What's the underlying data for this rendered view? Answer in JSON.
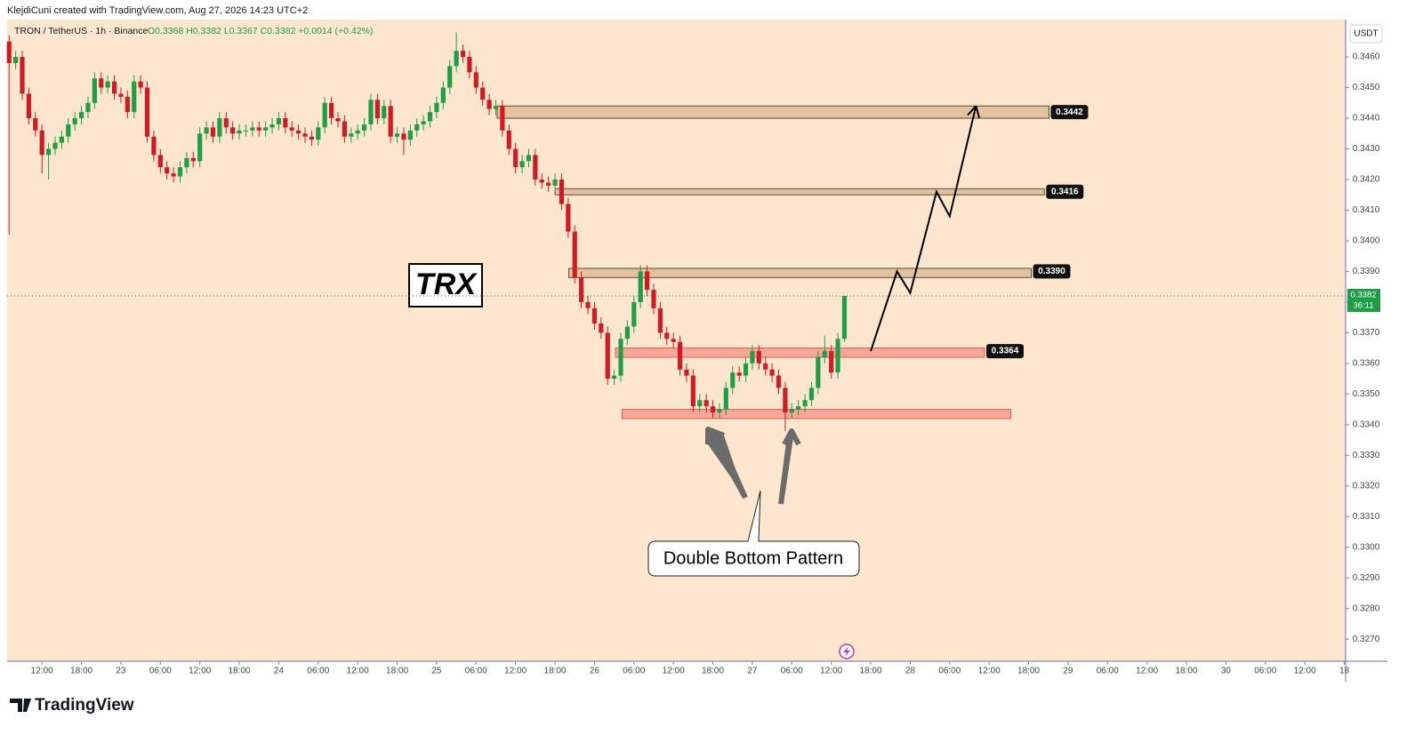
{
  "header": {
    "author_line": "KlejdiCuni created with TradingView.com, Aug 27, 2026 14:23 UTC+2",
    "symbol": "TRON / TetherUS · 1h · Binance",
    "ohlc": "O0.3368 H0.3382 L0.3367 C0.3382 +0.0014 (+0.42%)"
  },
  "chart_data": {
    "type": "candlestick",
    "title": "TRX",
    "annotation": "Double Bottom Pattern",
    "currency": "USDT",
    "x": [
      7,
      8,
      9,
      10,
      11,
      12,
      13,
      14,
      15,
      16,
      17,
      18,
      19,
      20,
      21,
      22,
      23,
      24,
      25,
      26,
      27,
      28,
      29,
      30,
      31,
      32,
      33,
      34,
      35,
      36,
      37,
      38,
      39,
      40,
      41,
      42,
      43,
      44,
      45,
      46,
      47,
      48,
      49,
      50,
      51,
      52,
      53,
      54,
      55,
      56,
      57,
      58,
      59,
      60,
      61,
      62,
      63,
      64,
      65,
      66,
      67,
      68,
      69,
      70,
      71,
      72,
      73,
      74,
      75,
      76,
      77,
      78,
      79,
      80,
      81,
      82,
      83,
      84,
      85,
      86,
      87,
      88,
      89,
      90,
      91,
      92,
      93,
      94,
      95,
      96,
      97,
      98,
      99,
      100,
      101,
      102,
      103,
      104,
      105,
      106,
      107,
      108,
      109,
      110,
      111,
      112,
      113,
      114,
      115,
      116,
      117,
      118,
      119,
      120,
      121,
      122,
      123,
      124,
      125,
      126,
      127,
      128,
      129,
      130,
      131,
      132,
      133,
      134
    ],
    "open": [
      0.3465,
      0.3458,
      0.346,
      0.3448,
      0.344,
      0.3436,
      0.3428,
      0.343,
      0.3432,
      0.3434,
      0.3438,
      0.344,
      0.3442,
      0.3445,
      0.3453,
      0.345,
      0.3452,
      0.3448,
      0.3447,
      0.3442,
      0.3452,
      0.345,
      0.3434,
      0.3428,
      0.3424,
      0.3422,
      0.3421,
      0.3424,
      0.3427,
      0.3426,
      0.3435,
      0.3437,
      0.3434,
      0.344,
      0.3437,
      0.3435,
      0.3436,
      0.3436,
      0.3437,
      0.3436,
      0.3437,
      0.3438,
      0.344,
      0.3437,
      0.3436,
      0.3435,
      0.3434,
      0.3433,
      0.3437,
      0.3445,
      0.344,
      0.3439,
      0.3434,
      0.3435,
      0.3436,
      0.3438,
      0.3446,
      0.344,
      0.3444,
      0.3434,
      0.3435,
      0.3433,
      0.3436,
      0.3438,
      0.3439,
      0.3442,
      0.3445,
      0.345,
      0.3457,
      0.3462,
      0.346,
      0.3455,
      0.345,
      0.3446,
      0.3443,
      0.3444,
      0.3436,
      0.343,
      0.3424,
      0.3426,
      0.3428,
      0.342,
      0.3419,
      0.3418,
      0.342,
      0.3412,
      0.3403,
      0.3388,
      0.338,
      0.3378,
      0.3373,
      0.337,
      0.3355,
      0.3356,
      0.3368,
      0.3372,
      0.338,
      0.339,
      0.3384,
      0.3378,
      0.337,
      0.3368,
      0.3367,
      0.3358,
      0.3356,
      0.3346,
      0.3348,
      0.3346,
      0.3344,
      0.3345,
      0.3352,
      0.3357,
      0.3356,
      0.336,
      0.3364,
      0.336,
      0.3358,
      0.3356,
      0.3352,
      0.3344,
      0.3345,
      0.3346,
      0.3348,
      0.3352,
      0.3362,
      0.3364,
      0.3357,
      0.3368
    ],
    "high": [
      0.3467,
      0.3462,
      0.3462,
      0.345,
      0.3442,
      0.3438,
      0.3432,
      0.3434,
      0.3436,
      0.344,
      0.3442,
      0.3444,
      0.3447,
      0.3455,
      0.3455,
      0.3454,
      0.3454,
      0.345,
      0.3449,
      0.3454,
      0.3454,
      0.3452,
      0.3436,
      0.343,
      0.3426,
      0.3424,
      0.3426,
      0.3429,
      0.3429,
      0.3437,
      0.3439,
      0.3439,
      0.3442,
      0.3442,
      0.3439,
      0.3438,
      0.3438,
      0.3439,
      0.3439,
      0.3439,
      0.344,
      0.3442,
      0.3442,
      0.3439,
      0.3438,
      0.3437,
      0.3436,
      0.3439,
      0.3447,
      0.3447,
      0.3442,
      0.3441,
      0.3437,
      0.3438,
      0.344,
      0.3448,
      0.3448,
      0.3446,
      0.3446,
      0.3437,
      0.3437,
      0.3438,
      0.344,
      0.3441,
      0.3444,
      0.3447,
      0.3452,
      0.3459,
      0.3468,
      0.3464,
      0.3462,
      0.3457,
      0.3452,
      0.3448,
      0.3446,
      0.3446,
      0.3438,
      0.3432,
      0.3428,
      0.343,
      0.343,
      0.3422,
      0.3421,
      0.3422,
      0.3422,
      0.3414,
      0.3405,
      0.339,
      0.3382,
      0.338,
      0.3375,
      0.3372,
      0.3358,
      0.337,
      0.3374,
      0.3382,
      0.3392,
      0.3392,
      0.3386,
      0.338,
      0.3372,
      0.337,
      0.3369,
      0.336,
      0.3358,
      0.335,
      0.335,
      0.3348,
      0.3347,
      0.3354,
      0.3359,
      0.3359,
      0.3362,
      0.3366,
      0.3366,
      0.3362,
      0.336,
      0.3358,
      0.3354,
      0.3347,
      0.3348,
      0.335,
      0.3354,
      0.3364,
      0.3369,
      0.3366,
      0.337,
      0.3382
    ],
    "low": [
      0.3402,
      0.3456,
      0.3446,
      0.3438,
      0.3434,
      0.3422,
      0.342,
      0.3428,
      0.343,
      0.3432,
      0.3436,
      0.3438,
      0.344,
      0.3443,
      0.3448,
      0.3448,
      0.3446,
      0.3445,
      0.344,
      0.344,
      0.3448,
      0.3432,
      0.3426,
      0.3422,
      0.342,
      0.3419,
      0.3419,
      0.3422,
      0.3424,
      0.3424,
      0.3433,
      0.3432,
      0.3432,
      0.3435,
      0.3433,
      0.3433,
      0.3434,
      0.3434,
      0.3434,
      0.3434,
      0.3435,
      0.3436,
      0.3435,
      0.3434,
      0.3433,
      0.3432,
      0.3431,
      0.3431,
      0.3435,
      0.3438,
      0.3437,
      0.3432,
      0.3432,
      0.3433,
      0.3434,
      0.3436,
      0.3438,
      0.3438,
      0.3432,
      0.3432,
      0.3428,
      0.3431,
      0.3434,
      0.3436,
      0.3437,
      0.344,
      0.3443,
      0.3448,
      0.3455,
      0.3458,
      0.3453,
      0.3448,
      0.3444,
      0.3441,
      0.3441,
      0.3434,
      0.3428,
      0.3422,
      0.3422,
      0.3424,
      0.3418,
      0.3417,
      0.3416,
      0.3416,
      0.341,
      0.3401,
      0.3386,
      0.3378,
      0.3376,
      0.3371,
      0.3368,
      0.3353,
      0.3353,
      0.3354,
      0.3366,
      0.337,
      0.3378,
      0.3382,
      0.3376,
      0.3368,
      0.3366,
      0.3365,
      0.3356,
      0.3354,
      0.3344,
      0.3344,
      0.3344,
      0.3342,
      0.3342,
      0.3343,
      0.335,
      0.3354,
      0.3354,
      0.3358,
      0.3358,
      0.3356,
      0.3354,
      0.335,
      0.3338,
      0.3342,
      0.3343,
      0.3344,
      0.3346,
      0.335,
      0.336,
      0.3355,
      0.3355,
      0.3367
    ],
    "close": [
      0.3458,
      0.346,
      0.3448,
      0.344,
      0.3436,
      0.3428,
      0.343,
      0.3432,
      0.3434,
      0.3438,
      0.344,
      0.3442,
      0.3445,
      0.3453,
      0.345,
      0.3452,
      0.3448,
      0.3447,
      0.3442,
      0.3452,
      0.345,
      0.3434,
      0.3428,
      0.3424,
      0.3422,
      0.3421,
      0.3424,
      0.3427,
      0.3426,
      0.3435,
      0.3437,
      0.3434,
      0.344,
      0.3437,
      0.3435,
      0.3436,
      0.3436,
      0.3437,
      0.3436,
      0.3437,
      0.3438,
      0.344,
      0.3437,
      0.3436,
      0.3435,
      0.3434,
      0.3433,
      0.3437,
      0.3445,
      0.344,
      0.3439,
      0.3434,
      0.3435,
      0.3436,
      0.3438,
      0.3446,
      0.344,
      0.3444,
      0.3434,
      0.3435,
      0.3433,
      0.3436,
      0.3438,
      0.3439,
      0.3442,
      0.3445,
      0.345,
      0.3457,
      0.3462,
      0.346,
      0.3455,
      0.345,
      0.3446,
      0.3443,
      0.3444,
      0.3436,
      0.343,
      0.3424,
      0.3426,
      0.3428,
      0.342,
      0.3419,
      0.3418,
      0.342,
      0.3412,
      0.3403,
      0.3388,
      0.338,
      0.3378,
      0.3373,
      0.337,
      0.3355,
      0.3356,
      0.3368,
      0.3372,
      0.338,
      0.339,
      0.3384,
      0.3378,
      0.337,
      0.3368,
      0.3367,
      0.3358,
      0.3356,
      0.3346,
      0.3348,
      0.3346,
      0.3344,
      0.3345,
      0.3352,
      0.3357,
      0.3356,
      0.336,
      0.3364,
      0.336,
      0.3358,
      0.3356,
      0.3352,
      0.3344,
      0.3345,
      0.3346,
      0.3348,
      0.3352,
      0.3362,
      0.3364,
      0.3357,
      0.3368,
      0.3382
    ],
    "colors": {
      "up": "#1e9e45",
      "down": "#d11a22"
    },
    "xlim": [
      6.7,
      210.2
    ],
    "ylim": [
      0.32628,
      0.34722
    ],
    "xticks": [
      {
        "value": 12,
        "label": "12:00"
      },
      {
        "value": 18,
        "label": "18:00"
      },
      {
        "value": 24,
        "label": "23"
      },
      {
        "value": 30,
        "label": "06:00"
      },
      {
        "value": 36,
        "label": "12:00"
      },
      {
        "value": 42,
        "label": "18:00"
      },
      {
        "value": 48,
        "label": "24"
      },
      {
        "value": 54,
        "label": "06:00"
      },
      {
        "value": 60,
        "label": "12:00"
      },
      {
        "value": 66,
        "label": "18:00"
      },
      {
        "value": 72,
        "label": "25"
      },
      {
        "value": 78,
        "label": "06:00"
      },
      {
        "value": 84,
        "label": "12:00"
      },
      {
        "value": 90,
        "label": "18:00"
      },
      {
        "value": 96,
        "label": "26"
      },
      {
        "value": 102,
        "label": "06:00"
      },
      {
        "value": 108,
        "label": "12:00"
      },
      {
        "value": 114,
        "label": "18:00"
      },
      {
        "value": 120,
        "label": "27"
      },
      {
        "value": 126,
        "label": "06:00"
      },
      {
        "value": 132,
        "label": "12:00"
      },
      {
        "value": 138,
        "label": "18:00"
      },
      {
        "value": 144,
        "label": "28"
      },
      {
        "value": 150,
        "label": "06:00"
      },
      {
        "value": 156,
        "label": "12:00"
      },
      {
        "value": 162,
        "label": "18:00"
      },
      {
        "value": 168,
        "label": "29"
      },
      {
        "value": 174,
        "label": "06:00"
      },
      {
        "value": 180,
        "label": "12:00"
      },
      {
        "value": 186,
        "label": "18:00"
      },
      {
        "value": 192,
        "label": "30"
      },
      {
        "value": 198,
        "label": "06:00"
      },
      {
        "value": 204,
        "label": "12:00"
      },
      {
        "value": 210,
        "label": "18"
      }
    ],
    "yticks": [
      {
        "value": 0.346,
        "label": "0.3460"
      },
      {
        "value": 0.345,
        "label": "0.3450"
      },
      {
        "value": 0.344,
        "label": "0.3440"
      },
      {
        "value": 0.343,
        "label": "0.3430"
      },
      {
        "value": 0.342,
        "label": "0.3420"
      },
      {
        "value": 0.341,
        "label": "0.3410"
      },
      {
        "value": 0.34,
        "label": "0.3400"
      },
      {
        "value": 0.339,
        "label": "0.3390"
      },
      {
        "value": 0.338,
        "label": "0.3380"
      },
      {
        "value": 0.337,
        "label": "0.3370"
      },
      {
        "value": 0.336,
        "label": "0.3360"
      },
      {
        "value": 0.335,
        "label": "0.3350"
      },
      {
        "value": 0.334,
        "label": "0.3340"
      },
      {
        "value": 0.333,
        "label": "0.3330"
      },
      {
        "value": 0.332,
        "label": "0.3320"
      },
      {
        "value": 0.331,
        "label": "0.3310"
      },
      {
        "value": 0.33,
        "label": "0.3300"
      },
      {
        "value": 0.329,
        "label": "0.3290"
      },
      {
        "value": 0.328,
        "label": "0.3280"
      },
      {
        "value": 0.327,
        "label": "0.3270"
      }
    ],
    "last_price": {
      "value": 0.3382,
      "label": "0.3382",
      "countdown": "36:11"
    },
    "levels": [
      {
        "label": {
          "value": 0.3442,
          "label": "0.3442"
        },
        "range": [
          0.344,
          0.3444
        ],
        "x": [
          81.2,
          165.1
        ],
        "color": "#d9b48c"
      },
      {
        "label": {
          "value": 0.3416,
          "label": "0.3416"
        },
        "range": [
          0.3415,
          0.3417
        ],
        "x": [
          90,
          164.4
        ],
        "color": "#d9b48c"
      },
      {
        "label": {
          "value": 0.339,
          "label": "0.3390"
        },
        "range": [
          0.3388,
          0.3391
        ],
        "x": [
          92.1,
          162.4
        ],
        "color": "#d9b48c"
      },
      {
        "label": {
          "value": 0.3364,
          "label": "0.3364"
        },
        "range": [
          0.3362,
          0.3365
        ],
        "x": [
          99.2,
          155.3
        ],
        "color": "#f28b82"
      },
      {
        "range": [
          0.3342,
          0.3345
        ],
        "x": [
          100.2,
          159.3
        ],
        "color": "#f28b82"
      }
    ],
    "projection": {
      "x": [
        138,
        142,
        144,
        148,
        150,
        154
      ],
      "y": [
        0.3364,
        0.339,
        0.3383,
        0.3416,
        0.3408,
        0.3444
      ]
    }
  },
  "footer": {
    "brand": "TradingView"
  }
}
